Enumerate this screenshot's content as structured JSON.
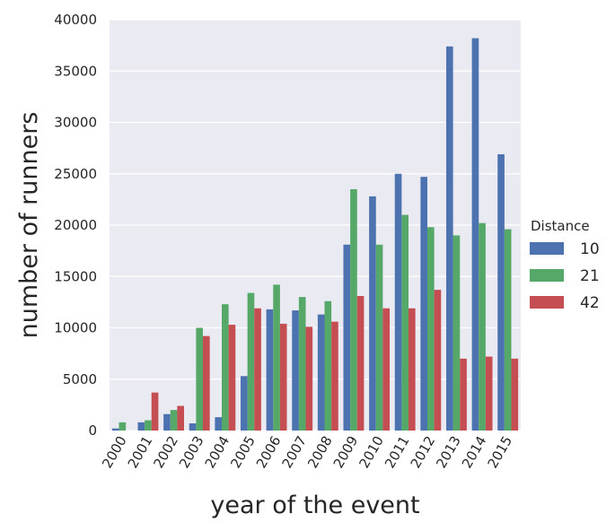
{
  "chart_data": {
    "type": "bar",
    "title": "",
    "xlabel": "year of the event",
    "ylabel": "number of runners",
    "categories": [
      "2000",
      "2001",
      "2002",
      "2003",
      "2004",
      "2005",
      "2006",
      "2007",
      "2008",
      "2009",
      "2010",
      "2011",
      "2012",
      "2013",
      "2014",
      "2015"
    ],
    "ylim": [
      0,
      40000
    ],
    "yticks": [
      "0",
      "5000",
      "10000",
      "15000",
      "20000",
      "25000",
      "30000",
      "35000",
      "40000"
    ],
    "grid": true,
    "legend": {
      "title": "Distance",
      "placement": "right",
      "entries": [
        "10",
        "21",
        "42"
      ]
    },
    "series": [
      {
        "name": "10",
        "color": "#4c72b0",
        "values": [
          200,
          800,
          1600,
          700,
          1300,
          5300,
          11800,
          11700,
          11300,
          18100,
          22800,
          25000,
          24700,
          37400,
          38200,
          26900
        ]
      },
      {
        "name": "21",
        "color": "#55a868",
        "values": [
          800,
          1000,
          2000,
          10000,
          12300,
          13400,
          14200,
          13000,
          12600,
          23500,
          18100,
          21000,
          19800,
          19000,
          20200,
          19600
        ]
      },
      {
        "name": "42",
        "color": "#c44e52",
        "values": [
          0,
          3700,
          2400,
          9200,
          10300,
          11900,
          10400,
          10100,
          10600,
          13100,
          11900,
          11900,
          13700,
          7000,
          7200,
          7000
        ]
      }
    ]
  }
}
